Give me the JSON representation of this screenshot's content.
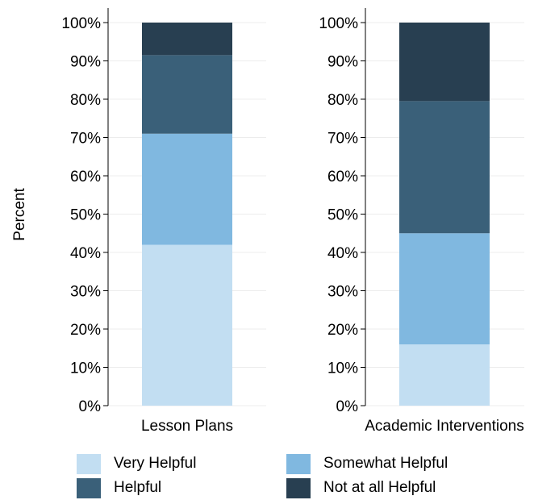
{
  "chart_data": {
    "type": "bar",
    "stacked": true,
    "categories": [
      "Lesson Plans",
      "Academic Interventions"
    ],
    "series": [
      {
        "name": "Very Helpful",
        "values": [
          42,
          16
        ],
        "color": "#c2def2"
      },
      {
        "name": "Somewhat Helpful",
        "values": [
          29,
          29
        ],
        "color": "#80b8e0"
      },
      {
        "name": "Helpful",
        "values": [
          20.5,
          34.5
        ],
        "color": "#3a6079"
      },
      {
        "name": "Not at all Helpful",
        "values": [
          8.5,
          20.5
        ],
        "color": "#283f51"
      }
    ],
    "ylabel": "Percent",
    "ylim": [
      0,
      100
    ],
    "yticks": [
      "0%",
      "10%",
      "20%",
      "30%",
      "40%",
      "50%",
      "60%",
      "70%",
      "80%",
      "90%",
      "100%"
    ],
    "grid": true,
    "legend_position": "bottom",
    "panels": "side-by-side"
  }
}
